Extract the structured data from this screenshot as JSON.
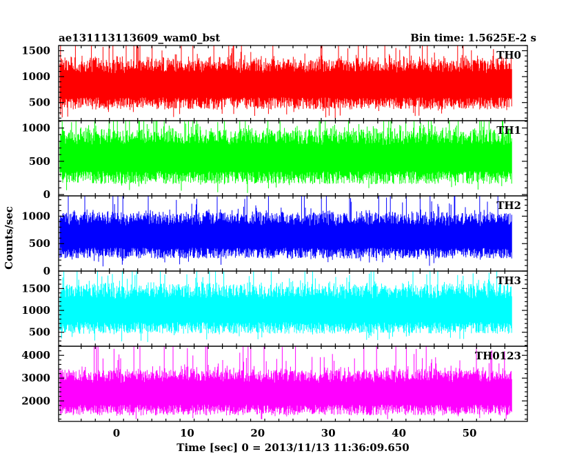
{
  "header": {
    "title_left": "ae131113113609_wam0_bst",
    "title_right": "Bin time: 1.5625E-2 s"
  },
  "chart_data": {
    "type": "line",
    "xlabel": "Time [sec] 0 = 2013/11/13 11:36:09.650",
    "ylabel": "Counts/sec",
    "x_ticks": [
      0,
      10,
      20,
      30,
      40,
      50
    ],
    "xlim": [
      -8.2,
      58.2
    ],
    "data_x_range": [
      -8,
      56
    ],
    "grid": false,
    "panels": [
      {
        "name": "TH0",
        "color": "#ff0000",
        "ylim": [
          150,
          1600
        ],
        "y_ticks": [
          500,
          1000,
          1500
        ],
        "baseline": 850,
        "noise": 210,
        "spike": 650,
        "floor_min": 150,
        "ceil_max": 1600
      },
      {
        "name": "TH1",
        "color": "#00ff00",
        "ylim": [
          -20,
          1110
        ],
        "y_ticks": [
          0,
          500,
          1000
        ],
        "baseline": 560,
        "noise": 175,
        "spike": 520,
        "floor_min": 0,
        "ceil_max": 1110
      },
      {
        "name": "TH2",
        "color": "#0000ff",
        "ylim": [
          0,
          1370
        ],
        "y_ticks": [
          0,
          500,
          1000
        ],
        "baseline": 640,
        "noise": 180,
        "spike": 650,
        "floor_min": 20,
        "ceil_max": 1370
      },
      {
        "name": "TH3",
        "color": "#00ffff",
        "ylim": [
          180,
          1900
        ],
        "y_ticks": [
          500,
          1000,
          1500
        ],
        "baseline": 1020,
        "noise": 240,
        "spike": 700,
        "floor_min": 200,
        "ceil_max": 1900
      },
      {
        "name": "TH0123",
        "color": "#ff00ff",
        "ylim": [
          1100,
          4400
        ],
        "y_ticks": [
          2000,
          3000,
          4000
        ],
        "baseline": 2350,
        "noise": 430,
        "spike": 1700,
        "floor_min": 1200,
        "ceil_max": 4400
      }
    ]
  }
}
